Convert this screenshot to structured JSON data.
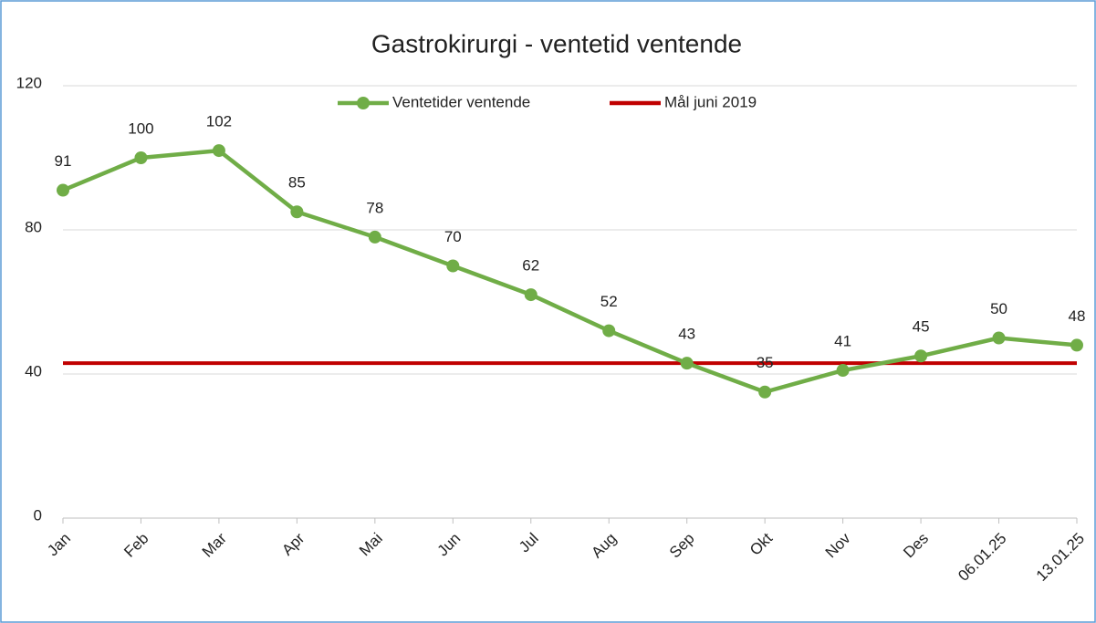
{
  "chart_data": {
    "type": "line",
    "title": "Gastrokirurgi - ventetid ventende",
    "categories": [
      "Jan",
      "Feb",
      "Mar",
      "Apr",
      "Mai",
      "Jun",
      "Jul",
      "Aug",
      "Sep",
      "Okt",
      "Nov",
      "Des",
      "06.01.25",
      "13.01.25"
    ],
    "series": [
      {
        "name": "Ventetider ventende",
        "color": "#70ad47",
        "values": [
          91,
          100,
          102,
          85,
          78,
          70,
          62,
          52,
          43,
          35,
          41,
          45,
          50,
          48
        ]
      },
      {
        "name": "Mål juni 2019",
        "color": "#c00000",
        "values": [
          43,
          43,
          43,
          43,
          43,
          43,
          43,
          43,
          43,
          43,
          43,
          43,
          43,
          43
        ]
      }
    ],
    "ylim": [
      0,
      120
    ],
    "yticks": [
      0,
      40,
      80,
      120
    ],
    "grid": true
  }
}
